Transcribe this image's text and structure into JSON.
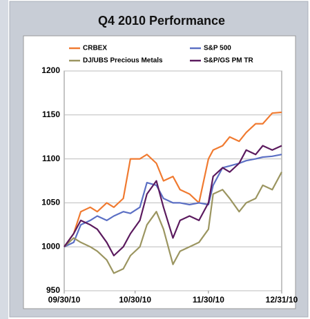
{
  "chart_data": {
    "type": "line",
    "title": "Q4 2010 Performance",
    "x": [
      "09/30/10",
      "10/04/10",
      "10/07/10",
      "10/11/10",
      "10/14/10",
      "10/18/10",
      "10/21/10",
      "10/25/10",
      "10/28/10",
      "11/01/10",
      "11/04/10",
      "11/08/10",
      "11/11/10",
      "11/15/10",
      "11/18/10",
      "11/22/10",
      "11/26/10",
      "11/30/10",
      "12/02/10",
      "12/06/10",
      "12/09/10",
      "12/13/10",
      "12/16/10",
      "12/20/10",
      "12/23/10",
      "12/27/10",
      "12/31/10"
    ],
    "series": [
      {
        "name": "CRBEX",
        "color": "#f07a30",
        "values": [
          1000,
          1015,
          1040,
          1045,
          1040,
          1050,
          1045,
          1055,
          1100,
          1100,
          1105,
          1095,
          1075,
          1080,
          1065,
          1060,
          1050,
          1100,
          1110,
          1115,
          1125,
          1120,
          1130,
          1140,
          1140,
          1152,
          1153
        ]
      },
      {
        "name": "S&P 500",
        "color": "#5b6fc4",
        "values": [
          1000,
          1005,
          1025,
          1030,
          1035,
          1030,
          1035,
          1040,
          1038,
          1045,
          1073,
          1070,
          1055,
          1050,
          1050,
          1048,
          1050,
          1048,
          1070,
          1090,
          1092,
          1095,
          1098,
          1100,
          1102,
          1103,
          1105
        ]
      },
      {
        "name": "DJ/UBS Precious Metals",
        "color": "#9b9560",
        "values": [
          1000,
          1010,
          1005,
          1000,
          995,
          985,
          970,
          975,
          990,
          1000,
          1025,
          1040,
          1020,
          980,
          995,
          1000,
          1005,
          1020,
          1060,
          1065,
          1055,
          1040,
          1050,
          1055,
          1070,
          1065,
          1085
        ]
      },
      {
        "name": "S&P/GS PM TR",
        "color": "#5b1a5e",
        "values": [
          1000,
          1015,
          1030,
          1025,
          1020,
          1005,
          990,
          1000,
          1015,
          1030,
          1060,
          1075,
          1045,
          1010,
          1030,
          1035,
          1030,
          1050,
          1080,
          1090,
          1085,
          1095,
          1110,
          1105,
          1115,
          1110,
          1115
        ]
      }
    ],
    "xlim": [
      "09/30/10",
      "12/31/10"
    ],
    "xticks": [
      "09/30/10",
      "10/30/10",
      "11/30/10",
      "12/31/10"
    ],
    "ylim": [
      950,
      1200
    ],
    "yticks": [
      950,
      1000,
      1050,
      1100,
      1150,
      1200
    ],
    "grid": true
  }
}
